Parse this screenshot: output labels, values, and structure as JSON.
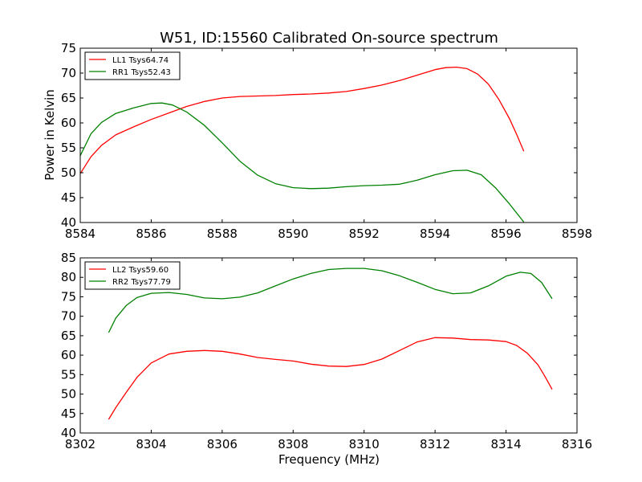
{
  "figure": {
    "title": "W51, ID:15560 Calibrated On-source spectrum",
    "ylabel": "Power in Kelvin",
    "xlabel": "Frequency (MHz)"
  },
  "chart_data": [
    {
      "type": "line",
      "title": "W51, ID:15560 Calibrated On-source spectrum",
      "xlabel": "",
      "ylabel": "Power in Kelvin",
      "xlim": [
        8584,
        8598
      ],
      "ylim": [
        40,
        75
      ],
      "xticks": [
        8584,
        8586,
        8588,
        8590,
        8592,
        8594,
        8596,
        8598
      ],
      "yticks": [
        40,
        45,
        50,
        55,
        60,
        65,
        70,
        75
      ],
      "grid": false,
      "legend_position": "top-left",
      "series": [
        {
          "name": "LL1 Tsys64.74",
          "color": "#ff0000",
          "x": [
            8584.0,
            8584.3,
            8584.6,
            8585.0,
            8585.5,
            8586.0,
            8586.5,
            8587.0,
            8587.5,
            8588.0,
            8588.5,
            8589.0,
            8589.5,
            8590.0,
            8590.5,
            8591.0,
            8591.5,
            8592.0,
            8592.5,
            8593.0,
            8593.5,
            8594.0,
            8594.3,
            8594.6,
            8594.9,
            8595.2,
            8595.5,
            8595.8,
            8596.1,
            8596.3,
            8596.5
          ],
          "y": [
            49.8,
            53.2,
            55.5,
            57.6,
            59.2,
            60.7,
            62.0,
            63.3,
            64.3,
            65.0,
            65.3,
            65.4,
            65.5,
            65.7,
            65.8,
            66.0,
            66.3,
            66.9,
            67.6,
            68.5,
            69.6,
            70.7,
            71.1,
            71.2,
            70.9,
            69.8,
            67.8,
            64.7,
            60.8,
            57.7,
            54.3
          ]
        },
        {
          "name": "RR1 Tsys52.43",
          "color": "#008000",
          "x": [
            8584.0,
            8584.3,
            8584.6,
            8585.0,
            8585.5,
            8586.0,
            8586.3,
            8586.6,
            8587.0,
            8587.5,
            8588.0,
            8588.5,
            8589.0,
            8589.5,
            8590.0,
            8590.5,
            8591.0,
            8591.5,
            8592.0,
            8592.5,
            8593.0,
            8593.5,
            8594.0,
            8594.5,
            8594.9,
            8595.3,
            8595.7,
            8596.1,
            8596.5
          ],
          "y": [
            53.4,
            57.8,
            60.1,
            61.9,
            63.0,
            63.9,
            64.0,
            63.6,
            62.2,
            59.5,
            56.0,
            52.3,
            49.5,
            47.8,
            47.0,
            46.8,
            46.9,
            47.2,
            47.4,
            47.5,
            47.7,
            48.5,
            49.6,
            50.4,
            50.5,
            49.6,
            47.0,
            43.7,
            40.1
          ]
        }
      ]
    },
    {
      "type": "line",
      "title": "",
      "xlabel": "Frequency (MHz)",
      "ylabel": "",
      "xlim": [
        8302,
        8316
      ],
      "ylim": [
        40,
        85
      ],
      "xticks": [
        8302,
        8304,
        8306,
        8308,
        8310,
        8312,
        8314,
        8316
      ],
      "yticks": [
        40,
        45,
        50,
        55,
        60,
        65,
        70,
        75,
        80,
        85
      ],
      "grid": false,
      "legend_position": "top-left",
      "series": [
        {
          "name": "LL2 Tsys59.60",
          "color": "#ff0000",
          "x": [
            8302.8,
            8303.0,
            8303.3,
            8303.6,
            8304.0,
            8304.5,
            8305.0,
            8305.5,
            8306.0,
            8306.5,
            8307.0,
            8307.5,
            8308.0,
            8308.5,
            8309.0,
            8309.5,
            8310.0,
            8310.5,
            8311.0,
            8311.5,
            8312.0,
            8312.5,
            8313.0,
            8313.5,
            8314.0,
            8314.3,
            8314.6,
            8314.9,
            8315.1,
            8315.3
          ],
          "y": [
            43.5,
            46.5,
            50.5,
            54.3,
            58.0,
            60.3,
            61.0,
            61.2,
            61.0,
            60.3,
            59.4,
            58.9,
            58.5,
            57.7,
            57.2,
            57.1,
            57.6,
            59.0,
            61.2,
            63.4,
            64.5,
            64.4,
            64.0,
            63.9,
            63.5,
            62.5,
            60.5,
            57.5,
            54.5,
            51.2
          ]
        },
        {
          "name": "RR2 Tsys77.79",
          "color": "#008000",
          "x": [
            8302.8,
            8303.0,
            8303.3,
            8303.6,
            8304.0,
            8304.5,
            8305.0,
            8305.5,
            8306.0,
            8306.5,
            8307.0,
            8307.5,
            8308.0,
            8308.5,
            8309.0,
            8309.5,
            8310.0,
            8310.5,
            8311.0,
            8311.5,
            8312.0,
            8312.5,
            8313.0,
            8313.5,
            8314.0,
            8314.4,
            8314.7,
            8315.0,
            8315.3
          ],
          "y": [
            65.8,
            69.5,
            72.8,
            74.8,
            75.9,
            76.1,
            75.6,
            74.7,
            74.5,
            74.9,
            76.0,
            77.8,
            79.6,
            81.0,
            82.0,
            82.3,
            82.3,
            81.7,
            80.4,
            78.7,
            76.9,
            75.8,
            76.0,
            77.8,
            80.3,
            81.3,
            81.0,
            78.7,
            74.5
          ]
        }
      ]
    }
  ]
}
